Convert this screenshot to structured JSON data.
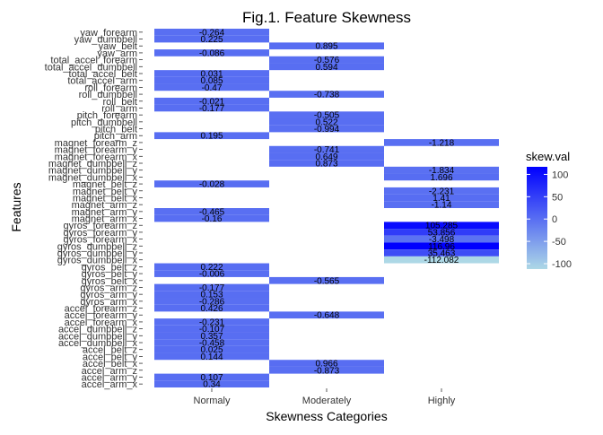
{
  "chart_data": {
    "type": "heatmap",
    "title": "Fig.1. Feature Skewness",
    "xlabel": "Skewness Categories",
    "ylabel": "Features",
    "categories": [
      "Normaly",
      "Moderately",
      "Highly"
    ],
    "features": [
      "yaw_forearm",
      "yaw_dumbbell",
      "yaw_belt",
      "yaw_arm",
      "total_accel_forearm",
      "total_accel_dumbbell",
      "total_accel_belt",
      "total_accel_arm",
      "roll_forearm",
      "roll_dumbbell",
      "roll_belt",
      "roll_arm",
      "pitch_forearm",
      "pitch_dumbbell",
      "pitch_belt",
      "pitch_arm",
      "magnet_forearm_z",
      "magnet_forearm_y",
      "magnet_forearm_x",
      "magnet_dumbbell_z",
      "magnet_dumbbell_y",
      "magnet_dumbbell_x",
      "magnet_belt_z",
      "magnet_belt_y",
      "magnet_belt_x",
      "magnet_arm_z",
      "magnet_arm_y",
      "magnet_arm_x",
      "gyros_forearm_z",
      "gyros_forearm_y",
      "gyros_forearm_x",
      "gyros_dumbbell_z",
      "gyros_dumbbell_y",
      "gyros_dumbbell_x",
      "gyros_belt_z",
      "gyros_belt_y",
      "gyros_belt_x",
      "gyros_arm_z",
      "gyros_arm_y",
      "gyros_arm_x",
      "accel_forearm_z",
      "accel_forearm_y",
      "accel_forearm_x",
      "accel_dumbbell_z",
      "accel_dumbbell_y",
      "accel_dumbbell_x",
      "accel_belt_z",
      "accel_belt_y",
      "accel_belt_x",
      "accel_arm_z",
      "accel_arm_y",
      "accel_arm_x"
    ],
    "cells": [
      {
        "feature": "yaw_forearm",
        "category": "Normaly",
        "value": -0.264
      },
      {
        "feature": "yaw_dumbbell",
        "category": "Normaly",
        "value": 0.225
      },
      {
        "feature": "yaw_belt",
        "category": "Moderately",
        "value": 0.895
      },
      {
        "feature": "yaw_arm",
        "category": "Normaly",
        "value": -0.086
      },
      {
        "feature": "total_accel_forearm",
        "category": "Moderately",
        "value": -0.576
      },
      {
        "feature": "total_accel_dumbbell",
        "category": "Moderately",
        "value": 0.594
      },
      {
        "feature": "total_accel_belt",
        "category": "Normaly",
        "value": 0.031
      },
      {
        "feature": "total_accel_arm",
        "category": "Normaly",
        "value": 0.085
      },
      {
        "feature": "roll_forearm",
        "category": "Normaly",
        "value": -0.47
      },
      {
        "feature": "roll_dumbbell",
        "category": "Moderately",
        "value": -0.738
      },
      {
        "feature": "roll_belt",
        "category": "Normaly",
        "value": -0.021
      },
      {
        "feature": "roll_arm",
        "category": "Normaly",
        "value": -0.177
      },
      {
        "feature": "pitch_forearm",
        "category": "Moderately",
        "value": -0.505
      },
      {
        "feature": "pitch_dumbbell",
        "category": "Moderately",
        "value": 0.522
      },
      {
        "feature": "pitch_belt",
        "category": "Moderately",
        "value": -0.994
      },
      {
        "feature": "pitch_arm",
        "category": "Normaly",
        "value": 0.195
      },
      {
        "feature": "magnet_forearm_z",
        "category": "Highly",
        "value": -1.218
      },
      {
        "feature": "magnet_forearm_y",
        "category": "Moderately",
        "value": -0.741
      },
      {
        "feature": "magnet_forearm_x",
        "category": "Moderately",
        "value": 0.649
      },
      {
        "feature": "magnet_dumbbell_z",
        "category": "Moderately",
        "value": 0.873
      },
      {
        "feature": "magnet_dumbbell_y",
        "category": "Highly",
        "value": -1.834
      },
      {
        "feature": "magnet_dumbbell_x",
        "category": "Highly",
        "value": 1.696
      },
      {
        "feature": "magnet_belt_z",
        "category": "Normaly",
        "value": -0.028
      },
      {
        "feature": "magnet_belt_y",
        "category": "Highly",
        "value": -2.231
      },
      {
        "feature": "magnet_belt_x",
        "category": "Highly",
        "value": 1.41
      },
      {
        "feature": "magnet_arm_z",
        "category": "Highly",
        "value": -1.14
      },
      {
        "feature": "magnet_arm_y",
        "category": "Normaly",
        "value": -0.465
      },
      {
        "feature": "magnet_arm_x",
        "category": "Normaly",
        "value": -0.16
      },
      {
        "feature": "gyros_forearm_z",
        "category": "Highly",
        "value": 105.285
      },
      {
        "feature": "gyros_forearm_y",
        "category": "Highly",
        "value": 53.856
      },
      {
        "feature": "gyros_forearm_x",
        "category": "Highly",
        "value": -3.498
      },
      {
        "feature": "gyros_dumbbell_z",
        "category": "Highly",
        "value": 116.96
      },
      {
        "feature": "gyros_dumbbell_y",
        "category": "Highly",
        "value": 35.463
      },
      {
        "feature": "gyros_dumbbell_x",
        "category": "Highly",
        "value": -112.082
      },
      {
        "feature": "gyros_belt_z",
        "category": "Normaly",
        "value": 0.222
      },
      {
        "feature": "gyros_belt_y",
        "category": "Normaly",
        "value": -0.006
      },
      {
        "feature": "gyros_belt_x",
        "category": "Moderately",
        "value": -0.565
      },
      {
        "feature": "gyros_arm_z",
        "category": "Normaly",
        "value": -0.177
      },
      {
        "feature": "gyros_arm_y",
        "category": "Normaly",
        "value": 0.153
      },
      {
        "feature": "gyros_arm_x",
        "category": "Normaly",
        "value": -0.286
      },
      {
        "feature": "accel_forearm_z",
        "category": "Normaly",
        "value": 0.426
      },
      {
        "feature": "accel_forearm_y",
        "category": "Moderately",
        "value": -0.648
      },
      {
        "feature": "accel_forearm_x",
        "category": "Normaly",
        "value": -0.231
      },
      {
        "feature": "accel_dumbbell_z",
        "category": "Normaly",
        "value": -0.107
      },
      {
        "feature": "accel_dumbbell_y",
        "category": "Normaly",
        "value": 0.357
      },
      {
        "feature": "accel_dumbbell_x",
        "category": "Normaly",
        "value": -0.458
      },
      {
        "feature": "accel_belt_z",
        "category": "Normaly",
        "value": 0.025
      },
      {
        "feature": "accel_belt_y",
        "category": "Normaly",
        "value": 0.144
      },
      {
        "feature": "accel_belt_x",
        "category": "Moderately",
        "value": 0.966
      },
      {
        "feature": "accel_arm_z",
        "category": "Moderately",
        "value": -0.873
      },
      {
        "feature": "accel_arm_y",
        "category": "Normaly",
        "value": 0.107
      },
      {
        "feature": "accel_arm_x",
        "category": "Normaly",
        "value": 0.34
      }
    ],
    "legend": {
      "title": "skew.val",
      "placement": "right",
      "ticks": [
        100,
        50,
        0,
        -50,
        -100
      ],
      "range": [
        -112.082,
        116.96
      ],
      "low_color": "#add8e6",
      "high_color": "#0000ff"
    },
    "grid": false
  }
}
